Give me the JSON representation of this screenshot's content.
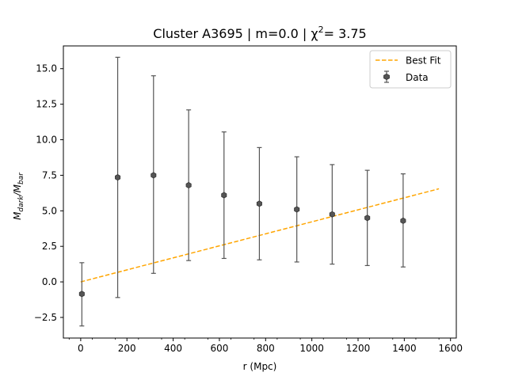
{
  "chart_data": {
    "type": "scatter",
    "title_main": "Cluster A3695 | m=0.0 | χ",
    "title_sup": "2",
    "title_tail": "= 3.75",
    "xlabel": "r (Mpc)",
    "ylabel_base1": "M",
    "ylabel_sub1": "dark",
    "ylabel_slash": "/",
    "ylabel_base2": "M",
    "ylabel_sub2": "bar",
    "xlim": [
      -75,
      1625
    ],
    "ylim": [
      -3.95,
      16.6
    ],
    "xticks": [
      0,
      200,
      400,
      600,
      800,
      1000,
      1200,
      1400,
      1600
    ],
    "xtick_labels": [
      "0",
      "200",
      "400",
      "600",
      "800",
      "1000",
      "1200",
      "1400",
      "1600"
    ],
    "yticks": [
      -2.5,
      0.0,
      2.5,
      5.0,
      7.5,
      10.0,
      12.5,
      15.0
    ],
    "ytick_labels": [
      "−2.5",
      "0.0",
      "2.5",
      "5.0",
      "7.5",
      "10.0",
      "12.5",
      "15.0"
    ],
    "grid": false,
    "legend_position": "top-right",
    "series": [
      {
        "name": "Data",
        "kind": "errorbar",
        "color": "#555555",
        "x": [
          5,
          160,
          315,
          467,
          620,
          773,
          935,
          1088,
          1240,
          1395
        ],
        "y": [
          -0.85,
          7.35,
          7.5,
          6.8,
          6.1,
          5.5,
          5.1,
          4.75,
          4.5,
          4.3
        ],
        "yerr_low": [
          2.25,
          8.45,
          6.9,
          5.3,
          4.45,
          3.95,
          3.7,
          3.5,
          3.35,
          3.25
        ],
        "yerr_high": [
          2.2,
          8.45,
          7.0,
          5.3,
          4.45,
          3.95,
          3.7,
          3.5,
          3.35,
          3.3
        ]
      },
      {
        "name": "Best Fit",
        "kind": "line",
        "color": "#FFA500",
        "dash": true,
        "x": [
          0,
          1550
        ],
        "y": [
          0.0,
          6.55
        ]
      }
    ]
  }
}
